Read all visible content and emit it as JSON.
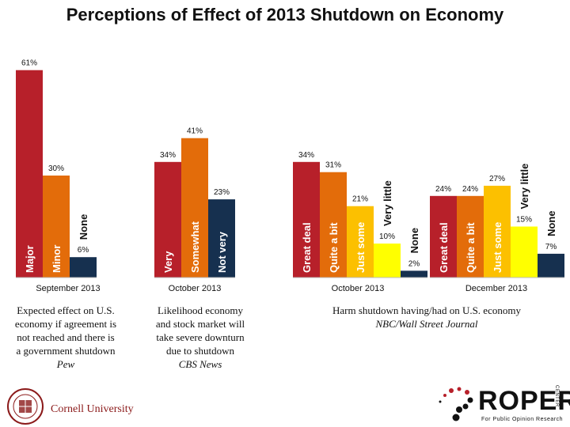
{
  "title": "Perceptions of Effect of 2013 Shutdown on Economy",
  "colors": {
    "dark_red": "#b7202a",
    "orange": "#e36c0a",
    "gold": "#fcc000",
    "yellow": "#ffff00",
    "navy": "#16304f"
  },
  "chart_data": [
    {
      "type": "bar",
      "group_label": "September 2013",
      "categories": [
        "Major",
        "Minor",
        "None"
      ],
      "values": [
        61,
        30,
        6
      ],
      "value_labels": [
        "61%",
        "30%",
        "6%"
      ],
      "colors": [
        "#b7202a",
        "#e36c0a",
        "#16304f"
      ]
    },
    {
      "type": "bar",
      "group_label": "October 2013",
      "categories": [
        "Very",
        "Somewhat",
        "Not very"
      ],
      "values": [
        34,
        41,
        23
      ],
      "value_labels": [
        "34%",
        "41%",
        "23%"
      ],
      "colors": [
        "#b7202a",
        "#e36c0a",
        "#16304f"
      ]
    },
    {
      "type": "bar",
      "group_label": "October 2013",
      "categories": [
        "Great deal",
        "Quite a bit",
        "Just some",
        "Very little",
        "None"
      ],
      "values": [
        34,
        31,
        21,
        10,
        2
      ],
      "value_labels": [
        "34%",
        "31%",
        "21%",
        "10%",
        "2%"
      ],
      "colors": [
        "#b7202a",
        "#e36c0a",
        "#fcc000",
        "#ffff00",
        "#16304f"
      ]
    },
    {
      "type": "bar",
      "group_label": "December 2013",
      "categories": [
        "Great deal",
        "Quite a bit",
        "Just some",
        "Very little",
        "None"
      ],
      "values": [
        24,
        24,
        27,
        15,
        7
      ],
      "value_labels": [
        "24%",
        "24%",
        "27%",
        "15%",
        "7%"
      ],
      "colors": [
        "#b7202a",
        "#e36c0a",
        "#fcc000",
        "#ffff00",
        "#16304f"
      ]
    }
  ],
  "captions": {
    "pew_line1": "Expected effect on U.S.",
    "pew_line2": "economy if agreement is",
    "pew_line3": "not reached and there is",
    "pew_line4": "a government shutdown",
    "pew_source": "Pew",
    "cbs_line1": "Likelihood economy",
    "cbs_line2": "and stock market will",
    "cbs_line3": "take severe downturn",
    "cbs_line4": "due to shutdown",
    "cbs_source": "CBS News",
    "nbc_line1": "Harm shutdown having/had on U.S. economy",
    "nbc_source": "NBC/Wall Street Journal"
  },
  "logos": {
    "cornell": "Cornell University",
    "roper": "ROPER",
    "roper_sub": "For Public Opinion Research",
    "roper_center": "CENTER"
  }
}
